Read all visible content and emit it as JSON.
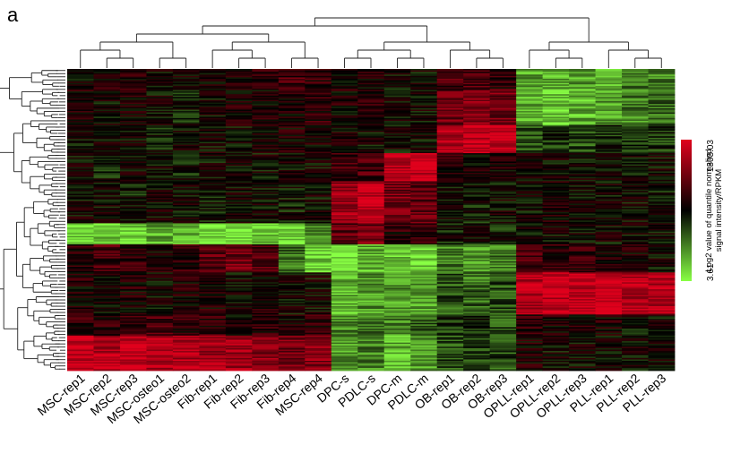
{
  "panel_label": "a",
  "chart_data": {
    "type": "heatmap",
    "title": "",
    "columns": [
      "MSC-rep1",
      "MSC-rep2",
      "MSC-rep3",
      "MSC-osteo1",
      "MSC-osteo2",
      "Fib-rep1",
      "Fib-rep2",
      "Fib-rep3",
      "Fib-rep4",
      "MSC-rep4",
      "DPC-s",
      "PDLC-s",
      "DPC-m",
      "PDLC-m",
      "OB-rep1",
      "OB-rep2",
      "OB-rep3",
      "OPLL-rep1",
      "OPLL-rep2",
      "OPLL-rep3",
      "PLL-rep1",
      "PLL-rep2",
      "PLL-rep3"
    ],
    "legend": {
      "title_lines": [
        "Log2 value of quantile normalied",
        "signal intensity/RPKM"
      ],
      "max_label": "1303.03",
      "min_label": "3.61",
      "high_color": "#e0001c",
      "mid_color": "#000000",
      "low_color": "#88ff44"
    },
    "row_blocks": [
      {
        "name": "block-1",
        "weight": 3,
        "values": [
          0.0,
          0.1,
          0.1,
          0.0,
          0.0,
          0.1,
          0.1,
          0.2,
          0.3,
          0.2,
          0.1,
          0.1,
          0.0,
          0.0,
          0.3,
          0.3,
          0.2,
          -0.6,
          -0.7,
          -0.6,
          -0.7,
          -0.5,
          -0.5
        ]
      },
      {
        "name": "block-2",
        "weight": 5,
        "values": [
          0.1,
          0.0,
          0.1,
          0.0,
          -0.1,
          0.0,
          0.1,
          0.1,
          0.1,
          0.2,
          0.1,
          0.2,
          0.0,
          0.0,
          0.5,
          0.6,
          0.5,
          -0.7,
          -0.8,
          -0.7,
          -0.6,
          -0.5,
          -0.4
        ]
      },
      {
        "name": "block-3",
        "weight": 4,
        "values": [
          0.0,
          0.0,
          0.0,
          -0.1,
          0.0,
          0.0,
          0.0,
          0.1,
          0.1,
          0.1,
          0.1,
          0.0,
          0.0,
          0.0,
          0.8,
          0.9,
          0.9,
          -0.3,
          -0.2,
          -0.3,
          -0.2,
          -0.2,
          -0.2
        ]
      },
      {
        "name": "block-4",
        "weight": 4,
        "values": [
          0.0,
          -0.1,
          0.0,
          0.0,
          -0.1,
          0.0,
          0.0,
          0.0,
          0.0,
          0.0,
          0.3,
          0.3,
          0.8,
          0.9,
          0.2,
          0.1,
          0.1,
          0.0,
          0.0,
          0.0,
          0.0,
          0.0,
          0.0
        ]
      },
      {
        "name": "block-5",
        "weight": 6,
        "values": [
          0.0,
          0.0,
          -0.1,
          0.0,
          0.0,
          -0.1,
          0.0,
          0.0,
          -0.1,
          0.0,
          0.7,
          0.9,
          0.5,
          0.4,
          0.0,
          -0.1,
          0.0,
          0.0,
          0.1,
          0.0,
          0.0,
          0.0,
          -0.1
        ]
      },
      {
        "name": "block-6",
        "weight": 3,
        "values": [
          -0.8,
          -0.8,
          -0.8,
          -0.7,
          -0.7,
          -0.9,
          -0.8,
          -0.8,
          -0.9,
          -0.6,
          0.4,
          0.5,
          0.2,
          0.2,
          -0.1,
          0.0,
          -0.1,
          0.0,
          0.0,
          0.0,
          0.0,
          0.0,
          0.0
        ]
      },
      {
        "name": "block-7",
        "weight": 4,
        "values": [
          0.2,
          0.3,
          0.2,
          0.1,
          0.2,
          0.4,
          0.5,
          0.3,
          -0.4,
          -0.8,
          -0.8,
          -0.7,
          -0.8,
          -0.8,
          -0.5,
          -0.6,
          -0.5,
          0.3,
          0.2,
          0.2,
          0.1,
          0.1,
          0.0
        ]
      },
      {
        "name": "block-8",
        "weight": 6,
        "values": [
          0.1,
          0.0,
          0.1,
          0.0,
          0.1,
          0.1,
          0.0,
          0.1,
          0.0,
          0.0,
          -0.7,
          -0.6,
          -0.6,
          -0.6,
          -0.3,
          -0.4,
          -0.3,
          0.8,
          0.9,
          0.9,
          0.9,
          0.8,
          0.8
        ]
      },
      {
        "name": "block-9",
        "weight": 3,
        "values": [
          0.2,
          0.2,
          0.3,
          0.3,
          0.2,
          0.2,
          0.1,
          0.2,
          0.1,
          0.2,
          -0.5,
          -0.4,
          -0.5,
          -0.4,
          -0.2,
          -0.2,
          -0.3,
          0.2,
          0.1,
          0.1,
          0.1,
          0.0,
          0.0
        ]
      },
      {
        "name": "block-10",
        "weight": 5,
        "values": [
          0.9,
          0.8,
          0.9,
          0.8,
          0.8,
          0.7,
          0.7,
          0.6,
          0.5,
          0.6,
          -0.6,
          -0.5,
          -0.7,
          -0.6,
          -0.3,
          -0.2,
          -0.3,
          0.1,
          0.0,
          0.0,
          0.0,
          0.0,
          0.0
        ]
      }
    ]
  }
}
